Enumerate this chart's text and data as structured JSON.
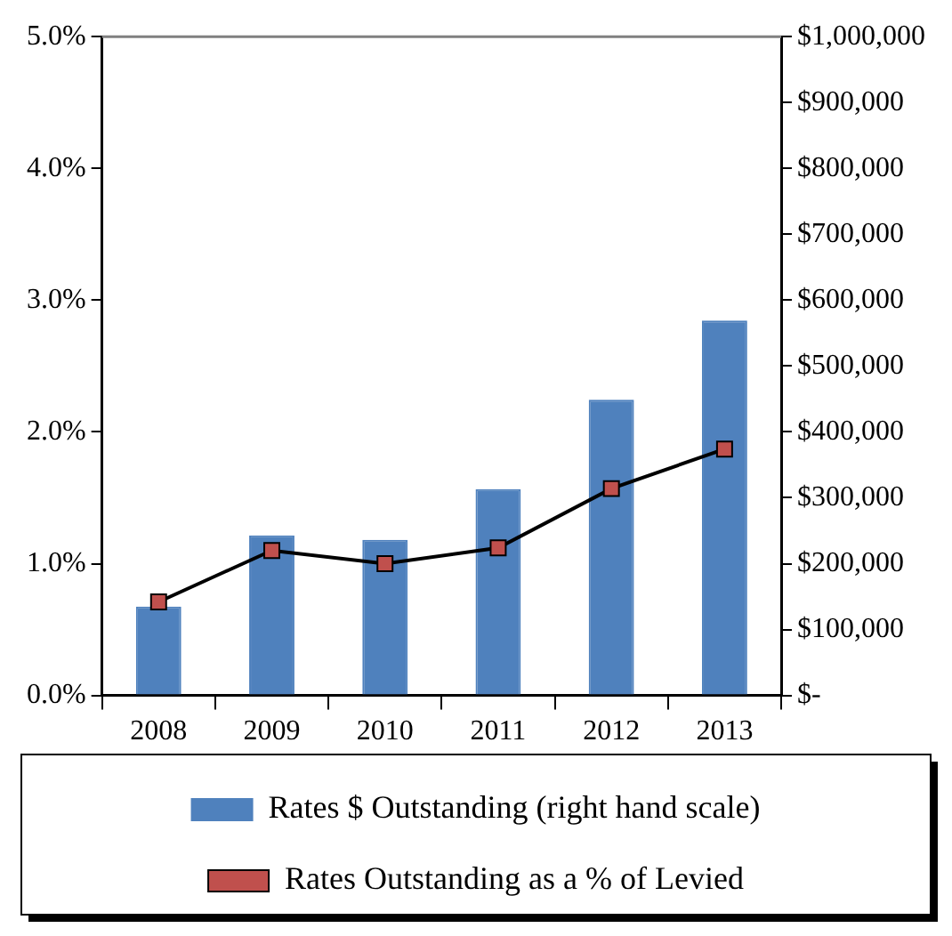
{
  "chart_data": {
    "type": "bar",
    "categories": [
      "2008",
      "2009",
      "2010",
      "2011",
      "2012",
      "2013"
    ],
    "series": [
      {
        "name": "Rates $ Outstanding (right hand scale)",
        "axis": "y2",
        "color": "#4f81bd",
        "values": [
          135000,
          243000,
          236000,
          313000,
          449000,
          569000
        ]
      },
      {
        "name": "Rates Outstanding as a % of Levied",
        "type": "line",
        "axis": "y",
        "color": "#c0504d",
        "marker": "square",
        "values": [
          0.71,
          1.1,
          1.0,
          1.12,
          1.57,
          1.87
        ]
      }
    ],
    "ylim": [
      0,
      5
    ],
    "yticks": [
      {
        "value": 0,
        "label": "0.0%"
      },
      {
        "value": 1,
        "label": "1.0%"
      },
      {
        "value": 2,
        "label": "2.0%"
      },
      {
        "value": 3,
        "label": "3.0%"
      },
      {
        "value": 4,
        "label": "4.0%"
      },
      {
        "value": 5,
        "label": "5.0%"
      }
    ],
    "y2lim": [
      0,
      1000000
    ],
    "y2ticks": [
      {
        "value": 0,
        "label": "$-"
      },
      {
        "value": 100000,
        "label": "$100,000"
      },
      {
        "value": 200000,
        "label": "$200,000"
      },
      {
        "value": 300000,
        "label": "$300,000"
      },
      {
        "value": 400000,
        "label": "$400,000"
      },
      {
        "value": 500000,
        "label": "$500,000"
      },
      {
        "value": 600000,
        "label": "$600,000"
      },
      {
        "value": 700000,
        "label": "$700,000"
      },
      {
        "value": 800000,
        "label": "$800,000"
      },
      {
        "value": 900000,
        "label": "$900,000"
      },
      {
        "value": 1000000,
        "label": "$1,000,000"
      }
    ],
    "grid": false,
    "legend": "bottom"
  }
}
